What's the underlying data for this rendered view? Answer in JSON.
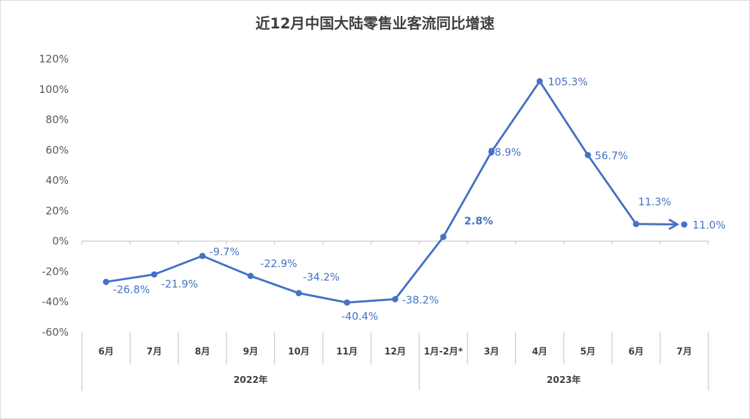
{
  "chart_data": {
    "type": "line",
    "title": "近12月中国大陆零售业客流同比增速",
    "categories": [
      "6月",
      "7月",
      "8月",
      "9月",
      "10月",
      "11月",
      "12月",
      "1月-2月*",
      "3月",
      "4月",
      "5月",
      "6月",
      "7月"
    ],
    "groups": [
      {
        "label": "2022年",
        "span": 7
      },
      {
        "label": "2023年",
        "span": 6
      }
    ],
    "series": [
      {
        "values": [
          -26.8,
          -21.9,
          -9.7,
          -22.9,
          -34.2,
          -40.4,
          -38.2,
          2.8,
          58.9,
          105.3,
          56.7,
          11.3,
          11.0
        ],
        "data_labels": [
          "-26.8%",
          "-21.9%",
          "-9.7%",
          "-22.9%",
          "-34.2%",
          "-40.4%",
          "-38.2%",
          "2.8%",
          "58.9%",
          "105.3%",
          "56.7%",
          "11.3%",
          "11.0%"
        ]
      }
    ],
    "ylim": [
      -60,
      120
    ],
    "yticks": [
      "120%",
      "100%",
      "80%",
      "60%",
      "40%",
      "20%",
      "0%",
      "-20%",
      "-40%",
      "-60%"
    ],
    "ytick_values": [
      120,
      100,
      80,
      60,
      40,
      20,
      0,
      -20,
      -40,
      -60
    ],
    "grid": false,
    "legend": "none",
    "line_color": "#4472C4",
    "label_color": "#4472C4",
    "end_marker": "arrow"
  }
}
